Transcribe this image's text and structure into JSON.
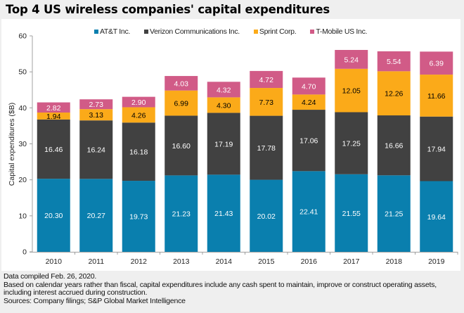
{
  "title": "Top 4 US wireless companies' capital expenditures",
  "legend": [
    {
      "label": "AT&T Inc.",
      "color": "#0a7fae"
    },
    {
      "label": "Verizon Communications Inc.",
      "color": "#414141"
    },
    {
      "label": "Sprint Corp.",
      "color": "#fbaa19"
    },
    {
      "label": "T-Mobile US Inc.",
      "color": "#d15b87"
    }
  ],
  "footer": {
    "line1": "Data compiled Feb. 26, 2020.",
    "line2": "Based on calendar years rather than fiscal, capital expenditures include any cash spent to maintain, improve or construct operating assets, including interest accrued during construction.",
    "line3": "Sources: Company filings; S&P Global Market Intelligence"
  },
  "chart_data": {
    "type": "bar",
    "stacked": true,
    "title": "Top 4 US wireless companies' capital expenditures",
    "xlabel": "",
    "ylabel": "Capital expenditures ($B)",
    "ylim": [
      0,
      60
    ],
    "yticks": [
      0,
      10,
      20,
      30,
      40,
      50,
      60
    ],
    "grid": false,
    "legend_position": "top",
    "categories": [
      "2010",
      "2011",
      "2012",
      "2013",
      "2014",
      "2015",
      "2016",
      "2017",
      "2018",
      "2019"
    ],
    "series": [
      {
        "name": "AT&T Inc.",
        "color": "#0a7fae",
        "label_color": "#ffffff",
        "values": [
          20.3,
          20.27,
          19.73,
          21.23,
          21.43,
          20.02,
          22.41,
          21.55,
          21.25,
          19.64
        ]
      },
      {
        "name": "Verizon Communications Inc.",
        "color": "#414141",
        "label_color": "#ffffff",
        "values": [
          16.46,
          16.24,
          16.18,
          16.6,
          17.19,
          17.78,
          17.06,
          17.25,
          16.66,
          17.94
        ]
      },
      {
        "name": "Sprint Corp.",
        "color": "#fbaa19",
        "label_color": "#000000",
        "values": [
          1.94,
          3.13,
          4.26,
          6.99,
          4.3,
          7.73,
          4.24,
          12.05,
          12.26,
          11.66
        ]
      },
      {
        "name": "T-Mobile US Inc.",
        "color": "#d15b87",
        "label_color": "#ffffff",
        "values": [
          2.82,
          2.73,
          2.9,
          4.03,
          4.32,
          4.72,
          4.7,
          5.24,
          5.54,
          6.39
        ]
      }
    ]
  }
}
